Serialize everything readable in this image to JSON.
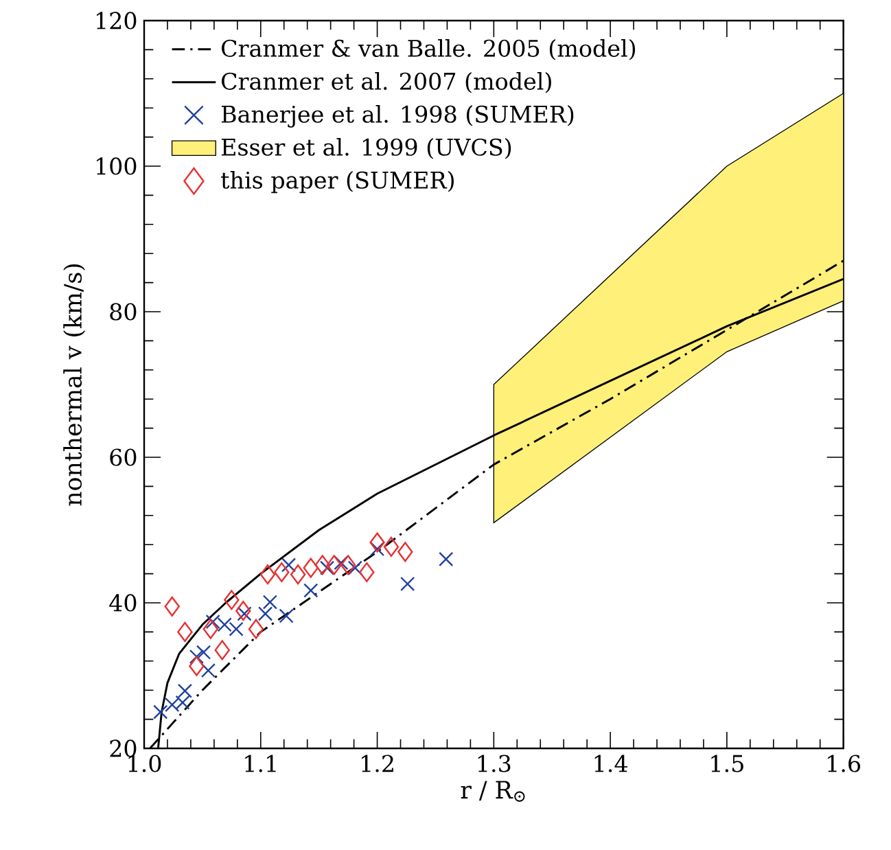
{
  "chart_data": {
    "type": "scatter",
    "xlabel": "r / R$_{⊙}$",
    "ylabel": "nonthermal v  (km/s)",
    "xlim": [
      1.0,
      1.6
    ],
    "ylim": [
      20,
      120
    ],
    "xticks": [
      {
        "value": 1.0,
        "label": "1.0"
      },
      1.1,
      1.2,
      1.3,
      1.4,
      1.5,
      1.6
    ],
    "yticks": [
      20,
      40,
      60,
      80,
      100,
      120
    ],
    "grid": false,
    "legend": "top left",
    "series": [
      {
        "name": "Cranmer & van Balle. 2005 (model)",
        "type": "line",
        "line_style": "dashdot",
        "marker": "none",
        "color": "#000000",
        "x": [
          1.005,
          1.05,
          1.1,
          1.2,
          1.3,
          1.4,
          1.5,
          1.6
        ],
        "values": [
          20,
          28,
          36,
          47,
          59,
          68,
          77.5,
          87
        ]
      },
      {
        "name": "Cranmer et al. 2007 (model)",
        "type": "line",
        "line_style": "solid",
        "marker": "none",
        "color": "#000000",
        "x": [
          1.012,
          1.015,
          1.02,
          1.03,
          1.05,
          1.07,
          1.1,
          1.15,
          1.2,
          1.3,
          1.4,
          1.5,
          1.6
        ],
        "values": [
          20,
          25,
          29,
          33,
          37,
          40,
          44,
          50,
          55,
          63,
          70.5,
          78,
          84.5
        ]
      },
      {
        "name": "Banerjee et al. 1998 (SUMER)",
        "marker": "cross",
        "color": "#2040a0",
        "x": [
          1.014,
          1.024,
          1.033,
          1.035,
          1.045,
          1.051,
          1.055,
          1.059,
          1.069,
          1.079,
          1.086,
          1.104,
          1.108,
          1.122,
          1.124,
          1.143,
          1.157,
          1.169,
          1.181,
          1.2,
          1.226,
          1.259
        ],
        "values": [
          25,
          26,
          26.3,
          27.9,
          32.6,
          33.2,
          30.7,
          37.4,
          37,
          36.4,
          38.5,
          38.5,
          40.1,
          38.2,
          45.2,
          41.7,
          44.8,
          45.5,
          44.8,
          47.4,
          42.6,
          46
        ]
      },
      {
        "name": "Esser et al. 1999 (UVCS)",
        "type": "area",
        "color": "#fff07a",
        "x": [
          1.3,
          1.5,
          1.6
        ],
        "values": [
          null,
          null,
          null
        ],
        "lower": [
          51,
          74.5,
          81.5
        ],
        "upper": [
          70,
          100,
          110
        ]
      },
      {
        "name": "this paper (SUMER)",
        "marker": "diamond",
        "color": "#e83030",
        "x": [
          1.024,
          1.035,
          1.045,
          1.057,
          1.067,
          1.075,
          1.085,
          1.096,
          1.106,
          1.118,
          1.132,
          1.143,
          1.153,
          1.163,
          1.175,
          1.191,
          1.2,
          1.212,
          1.224
        ],
        "values": [
          39.5,
          36,
          31.3,
          36.4,
          33.5,
          40.4,
          38.9,
          36.4,
          43.9,
          44.2,
          43.9,
          44.8,
          45.2,
          45.2,
          45.2,
          44.2,
          48.3,
          47.7,
          47
        ]
      }
    ]
  }
}
